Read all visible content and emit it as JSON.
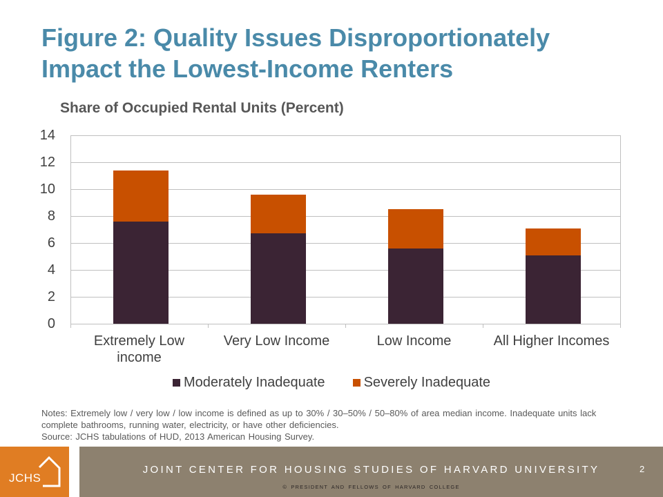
{
  "slide": {
    "title": "Figure 2: Quality Issues Disproportionately Impact the Lowest-Income Renters",
    "notes": "Notes: Extremely low / very low / low income is defined as up to 30% / 30–50% / 50–80% of area median income. Inadequate units lack complete bathrooms, running water, electricity, or have other deficiencies.",
    "source": "Source: JCHS tabulations of HUD, 2013 American Housing Survey.",
    "page_number": "2"
  },
  "footer": {
    "logo_text": "JCHS",
    "org_name": "JOINT CENTER FOR HOUSING STUDIES OF HARVARD UNIVERSITY",
    "copyright": "© PRESIDENT AND FELLOWS OF HARVARD COLLEGE"
  },
  "theme": {
    "title_color": "#4a8aa9",
    "footer_band_color": "#8d816f",
    "logo_box_color": "#e07d23"
  },
  "chart_data": {
    "type": "bar",
    "stacked": true,
    "title": "Share of Occupied Rental Units (Percent)",
    "xlabel": "",
    "ylabel": "",
    "categories": [
      "Extremely Low income",
      "Very Low Income",
      "Low Income",
      "All Higher Incomes"
    ],
    "series": [
      {
        "name": "Moderately Inadequate",
        "color": "#3b2434",
        "values": [
          7.6,
          6.7,
          5.6,
          5.1
        ]
      },
      {
        "name": "Severely Inadequate",
        "color": "#c85000",
        "values": [
          3.8,
          2.9,
          2.9,
          2.0
        ]
      }
    ],
    "ylim": [
      0,
      14
    ],
    "yticks": [
      0,
      2,
      4,
      6,
      8,
      10,
      12,
      14
    ],
    "grid": true,
    "legend": "bottom"
  }
}
